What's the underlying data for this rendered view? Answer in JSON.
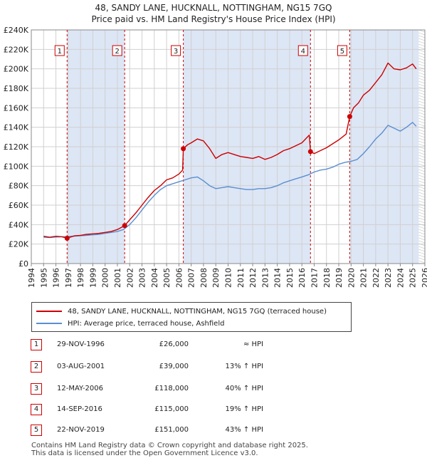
{
  "header": {
    "title_line1": "48, SANDY LANE, HUCKNALL, NOTTINGHAM, NG15 7GQ",
    "title_line2": "Price paid vs. HM Land Registry's House Price Index (HPI)"
  },
  "colors": {
    "property_line": "#cc0000",
    "hpi_line": "#5b8ed0",
    "shade": "#dde6f5",
    "grid": "#d0d0d0",
    "marker_border": "#cc0000"
  },
  "chart_data": {
    "type": "line",
    "title": "Price paid vs. HM Land Registry's House Price Index (HPI)",
    "xlabel": "",
    "ylabel": "",
    "xlim": [
      1994,
      2026
    ],
    "ylim": [
      0,
      240000
    ],
    "x_ticks": [
      1994,
      1995,
      1996,
      1997,
      1998,
      1999,
      2000,
      2001,
      2002,
      2003,
      2004,
      2005,
      2006,
      2007,
      2008,
      2009,
      2010,
      2011,
      2012,
      2013,
      2014,
      2015,
      2016,
      2017,
      2018,
      2019,
      2020,
      2021,
      2022,
      2023,
      2024,
      2025,
      2026
    ],
    "y_ticks": [
      0,
      20000,
      40000,
      60000,
      80000,
      100000,
      120000,
      140000,
      160000,
      180000,
      200000,
      220000,
      240000
    ],
    "y_tick_labels": [
      "£0",
      "£20K",
      "£40K",
      "£60K",
      "£80K",
      "£100K",
      "£120K",
      "£140K",
      "£160K",
      "£180K",
      "£200K",
      "£220K",
      "£240K"
    ],
    "grid": true,
    "shaded_ranges": [
      [
        1996.91,
        2001.59
      ],
      [
        2006.36,
        2016.7
      ],
      [
        2019.89,
        2025.5
      ]
    ],
    "series": [
      {
        "name": "48, SANDY LANE, HUCKNALL, NOTTINGHAM, NG15 7GQ (terraced house)",
        "x": [
          1995.0,
          1995.5,
          1996.0,
          1996.5,
          1996.91,
          1997.5,
          1998.0,
          1998.5,
          1999.0,
          1999.5,
          2000.0,
          2000.5,
          2001.0,
          2001.59,
          2002.0,
          2002.5,
          2003.0,
          2003.5,
          2004.0,
          2004.5,
          2005.0,
          2005.5,
          2006.0,
          2006.3,
          2006.36,
          2006.7,
          2007.0,
          2007.5,
          2008.0,
          2008.5,
          2009.0,
          2009.5,
          2010.0,
          2010.5,
          2011.0,
          2011.5,
          2012.0,
          2012.5,
          2013.0,
          2013.5,
          2014.0,
          2014.5,
          2015.0,
          2015.5,
          2016.0,
          2016.6,
          2016.7,
          2017.0,
          2017.5,
          2018.0,
          2018.5,
          2019.0,
          2019.6,
          2019.89,
          2020.2,
          2020.6,
          2021.0,
          2021.5,
          2022.0,
          2022.5,
          2023.0,
          2023.5,
          2024.0,
          2024.5,
          2025.0,
          2025.3
        ],
        "values": [
          28000,
          27000,
          28000,
          27500,
          26000,
          28500,
          29000,
          30000,
          30500,
          31000,
          32000,
          33000,
          35000,
          39000,
          45000,
          52000,
          60000,
          68000,
          75000,
          80000,
          86000,
          88000,
          92000,
          96000,
          118000,
          122000,
          124000,
          128000,
          126000,
          118000,
          108000,
          112000,
          114000,
          112000,
          110000,
          109000,
          108000,
          110000,
          107000,
          109000,
          112000,
          116000,
          118000,
          121000,
          124000,
          132000,
          115000,
          113000,
          116000,
          119000,
          123000,
          127000,
          133000,
          151000,
          160000,
          165000,
          173000,
          178000,
          186000,
          194000,
          206000,
          200000,
          199000,
          201000,
          205000,
          200000
        ]
      },
      {
        "name": "HPI: Average price, terraced house, Ashfield",
        "x": [
          1995.0,
          1995.5,
          1996.0,
          1996.5,
          1997.0,
          1997.5,
          1998.0,
          1998.5,
          1999.0,
          1999.5,
          2000.0,
          2000.5,
          2001.0,
          2001.5,
          2002.0,
          2002.5,
          2003.0,
          2003.5,
          2004.0,
          2004.5,
          2005.0,
          2005.5,
          2006.0,
          2006.5,
          2007.0,
          2007.5,
          2008.0,
          2008.5,
          2009.0,
          2009.5,
          2010.0,
          2010.5,
          2011.0,
          2011.5,
          2012.0,
          2012.5,
          2013.0,
          2013.5,
          2014.0,
          2014.5,
          2015.0,
          2015.5,
          2016.0,
          2016.5,
          2017.0,
          2017.5,
          2018.0,
          2018.5,
          2019.0,
          2019.5,
          2020.0,
          2020.5,
          2021.0,
          2021.5,
          2022.0,
          2022.5,
          2023.0,
          2023.5,
          2024.0,
          2024.5,
          2025.0,
          2025.3
        ],
        "values": [
          27000,
          26800,
          27200,
          27500,
          27800,
          28200,
          28600,
          29000,
          29500,
          30000,
          31000,
          32000,
          33000,
          35000,
          40000,
          47000,
          55000,
          63000,
          70000,
          76000,
          80000,
          82000,
          84000,
          86000,
          88000,
          89000,
          85000,
          80000,
          77000,
          78000,
          79000,
          78000,
          77000,
          76000,
          76000,
          77000,
          77000,
          78000,
          80000,
          83000,
          85000,
          87000,
          89000,
          91000,
          94000,
          96000,
          97000,
          99000,
          102000,
          104000,
          105000,
          107000,
          113000,
          120000,
          128000,
          134000,
          142000,
          139000,
          136000,
          140000,
          145000,
          141000
        ]
      }
    ],
    "sale_markers": [
      {
        "label": "1",
        "x": 1996.91,
        "value": 26000
      },
      {
        "label": "2",
        "x": 2001.59,
        "value": 39000
      },
      {
        "label": "3",
        "x": 2006.36,
        "value": 118000
      },
      {
        "label": "4",
        "x": 2016.7,
        "value": 115000
      },
      {
        "label": "5",
        "x": 2019.89,
        "value": 151000
      }
    ]
  },
  "legend": {
    "property_label": "48, SANDY LANE, HUCKNALL, NOTTINGHAM, NG15 7GQ (terraced house)",
    "hpi_label": "HPI: Average price, terraced house, Ashfield"
  },
  "sales": [
    {
      "num": "1",
      "date": "29-NOV-1996",
      "price": "£26,000",
      "hpi": "≈ HPI"
    },
    {
      "num": "2",
      "date": "03-AUG-2001",
      "price": "£39,000",
      "hpi": "13% ↑ HPI"
    },
    {
      "num": "3",
      "date": "12-MAY-2006",
      "price": "£118,000",
      "hpi": "40% ↑ HPI"
    },
    {
      "num": "4",
      "date": "14-SEP-2016",
      "price": "£115,000",
      "hpi": "19% ↑ HPI"
    },
    {
      "num": "5",
      "date": "22-NOV-2019",
      "price": "£151,000",
      "hpi": "43% ↑ HPI"
    }
  ],
  "footer": {
    "line1": "Contains HM Land Registry data © Crown copyright and database right 2025.",
    "line2": "This data is licensed under the Open Government Licence v3.0."
  }
}
